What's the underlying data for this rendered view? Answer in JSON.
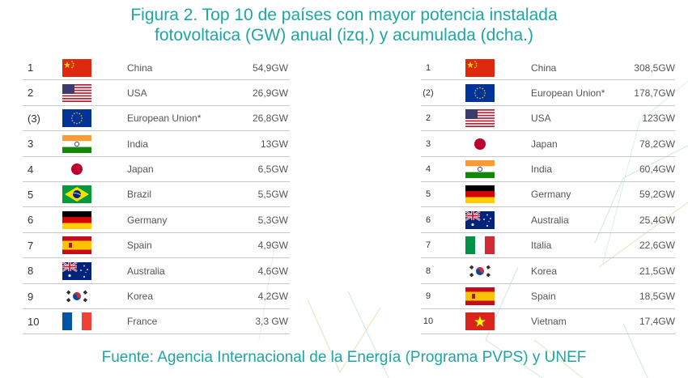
{
  "title": {
    "line1": "Figura 2. Top 10 de países con mayor potencia instalada",
    "line2": "fotovoltaica (GW) anual (izq.) y acumulada (dcha.)"
  },
  "source": "Fuente: Agencia Internacional de la Energía (Programa PVPS) y UNEF",
  "colors": {
    "accent": "#1ea6a3",
    "divider": "#c8c8c8"
  },
  "annual": [
    {
      "rank": "1",
      "flag": "china-flag-icon",
      "country": "China",
      "value": "54,9GW"
    },
    {
      "rank": "2",
      "flag": "usa-flag-icon",
      "country": "USA",
      "value": "26,9GW"
    },
    {
      "rank": "(3)",
      "flag": "eu-flag-icon",
      "country": "European Union*",
      "value": "26,8GW"
    },
    {
      "rank": "3",
      "flag": "india-flag-icon",
      "country": "India",
      "value": "13GW"
    },
    {
      "rank": "4",
      "flag": "japan-flag-icon",
      "country": "Japan",
      "value": "6,5GW"
    },
    {
      "rank": "5",
      "flag": "brazil-flag-icon",
      "country": "Brazil",
      "value": "5,5GW"
    },
    {
      "rank": "6",
      "flag": "germany-flag-icon",
      "country": "Germany",
      "value": "5,3GW"
    },
    {
      "rank": "7",
      "flag": "spain-flag-icon",
      "country": "Spain",
      "value": "4,9GW"
    },
    {
      "rank": "8",
      "flag": "australia-flag-icon",
      "country": "Australia",
      "value": "4,6GW"
    },
    {
      "rank": "9",
      "flag": "korea-flag-icon",
      "country": "Korea",
      "value": "4,2GW"
    },
    {
      "rank": "10",
      "flag": "france-flag-icon",
      "country": "France",
      "value": "3,3 GW"
    }
  ],
  "cumulative": [
    {
      "rank": "1",
      "flag": "china-flag-icon",
      "country": "China",
      "value": "308,5GW"
    },
    {
      "rank": "(2)",
      "flag": "eu-flag-icon",
      "country": "European Union*",
      "value": "178,7GW"
    },
    {
      "rank": "2",
      "flag": "usa-flag-icon",
      "country": "USA",
      "value": "123GW"
    },
    {
      "rank": "3",
      "flag": "japan-flag-icon",
      "country": "Japan",
      "value": "78,2GW"
    },
    {
      "rank": "4",
      "flag": "india-flag-icon",
      "country": "India",
      "value": "60,4GW"
    },
    {
      "rank": "5",
      "flag": "germany-flag-icon",
      "country": "Germany",
      "value": "59,2GW"
    },
    {
      "rank": "6",
      "flag": "australia-flag-icon",
      "country": "Australia",
      "value": "25,4GW"
    },
    {
      "rank": "7",
      "flag": "italy-flag-icon",
      "country": "Italia",
      "value": "22,6GW"
    },
    {
      "rank": "8",
      "flag": "korea-flag-icon",
      "country": "Korea",
      "value": "21,5GW"
    },
    {
      "rank": "9",
      "flag": "spain-flag-icon",
      "country": "Spain",
      "value": "18,5GW"
    },
    {
      "rank": "10",
      "flag": "vietnam-flag-icon",
      "country": "Vietnam",
      "value": "17,4GW"
    }
  ]
}
